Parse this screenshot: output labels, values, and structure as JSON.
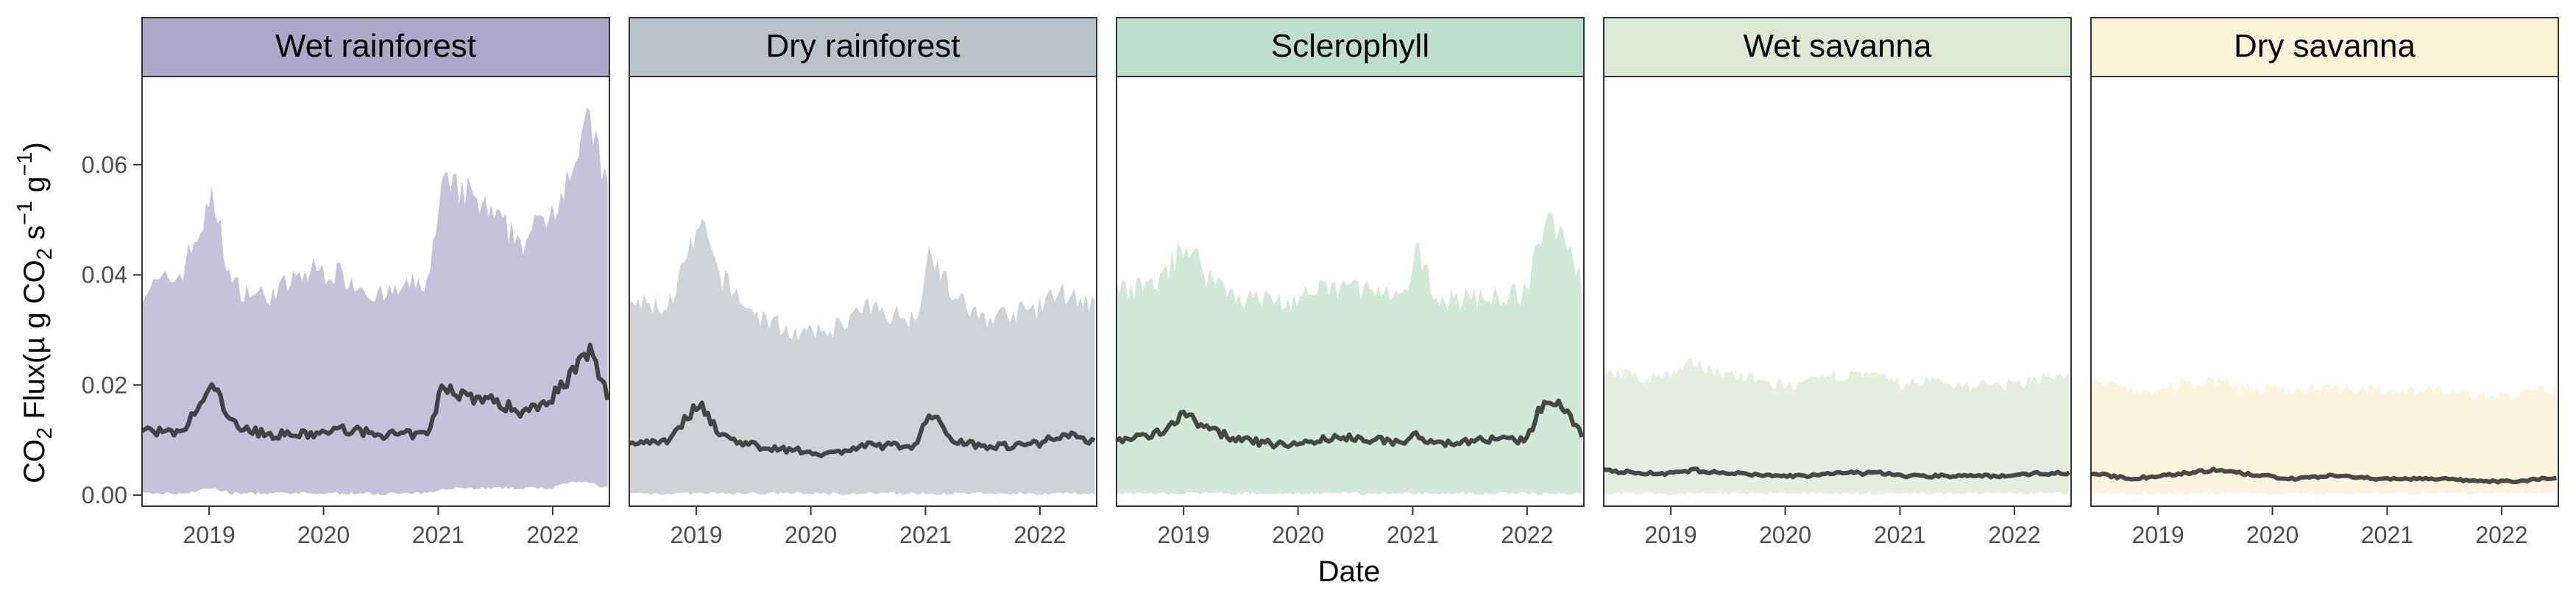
{
  "figure": {
    "y_axis_label": {
      "prefix": "CO",
      "prefix_sub": "2",
      "mid": " Flux(µ g CO",
      "mid_sub": "2",
      "s": " s",
      "s_sup": "−1",
      "g": " g",
      "g_sup": "−1",
      "suffix": ")"
    },
    "x_axis_label": "Date"
  },
  "chart_data": {
    "type": "area",
    "subtype": "small-multiples ribbon with median line",
    "xlabel": "Date",
    "ylabel": "CO2 Flux(µ g CO2 s-1 g-1)",
    "x_range": [
      "2018-06-01",
      "2022-07-01"
    ],
    "ylim": [
      -0.002,
      0.076
    ],
    "y_ticks": [
      0.0,
      0.02,
      0.04,
      0.06
    ],
    "y_tick_labels": [
      "0.00",
      "0.02",
      "0.04",
      "0.06"
    ],
    "x_ticks": [
      "2019-01-01",
      "2020-01-01",
      "2021-01-01",
      "2022-01-01"
    ],
    "x_tick_labels": [
      "2019",
      "2020",
      "2021",
      "2022"
    ],
    "line_color": "#2b2b2b",
    "grid": false,
    "shared_y_axis": true,
    "dates": [
      "2018-06-01",
      "2018-10-01",
      "2019-01-15",
      "2019-03-15",
      "2019-07-01",
      "2019-12-01",
      "2020-03-01",
      "2020-07-01",
      "2020-12-01",
      "2021-01-15",
      "2021-04-01",
      "2021-07-01",
      "2021-10-01",
      "2022-01-01",
      "2022-03-01",
      "2022-05-01",
      "2022-06-25"
    ],
    "panels": [
      {
        "title": "Wet rainforest",
        "strip_color": "#ada8c8",
        "band_color": "#c6c2d9",
        "median": [
          0.012,
          0.011,
          0.02,
          0.013,
          0.011,
          0.011,
          0.012,
          0.011,
          0.011,
          0.02,
          0.018,
          0.017,
          0.015,
          0.018,
          0.022,
          0.026,
          0.018
        ],
        "upper": [
          0.037,
          0.04,
          0.054,
          0.038,
          0.036,
          0.041,
          0.04,
          0.036,
          0.039,
          0.056,
          0.055,
          0.05,
          0.046,
          0.052,
          0.06,
          0.068,
          0.055
        ],
        "lower": [
          0.0,
          0.0,
          0.001,
          0.0,
          0.0,
          0.0,
          0.0,
          0.0,
          0.0,
          0.001,
          0.001,
          0.001,
          0.001,
          0.001,
          0.002,
          0.002,
          0.001
        ]
      },
      {
        "title": "Dry rainforest",
        "strip_color": "#b8c3c7",
        "band_color": "#cdd3d6",
        "median": [
          0.0095,
          0.01,
          0.017,
          0.011,
          0.009,
          0.008,
          0.0075,
          0.009,
          0.009,
          0.015,
          0.01,
          0.009,
          0.009,
          0.0095,
          0.011,
          0.0105,
          0.0098
        ],
        "upper": [
          0.035,
          0.034,
          0.049,
          0.04,
          0.033,
          0.029,
          0.03,
          0.034,
          0.032,
          0.045,
          0.036,
          0.032,
          0.033,
          0.034,
          0.037,
          0.036,
          0.034
        ],
        "lower": [
          0.0,
          0.0,
          0.0,
          0.0,
          0.0,
          0.0,
          0.0,
          0.0,
          0.0,
          0.0,
          0.0,
          0.0,
          0.0,
          0.0,
          0.0,
          0.0,
          0.0
        ]
      },
      {
        "title": "Sclerophyll",
        "strip_color": "#bedfcd",
        "band_color": "#d2e9da",
        "median": [
          0.01,
          0.011,
          0.015,
          0.012,
          0.01,
          0.009,
          0.01,
          0.0105,
          0.0095,
          0.011,
          0.009,
          0.01,
          0.01,
          0.01,
          0.018,
          0.016,
          0.011
        ],
        "upper": [
          0.037,
          0.038,
          0.046,
          0.04,
          0.036,
          0.035,
          0.037,
          0.038,
          0.035,
          0.044,
          0.035,
          0.036,
          0.036,
          0.037,
          0.05,
          0.048,
          0.038
        ],
        "lower": [
          0.0,
          0.0,
          0.0,
          0.0,
          0.0,
          0.0,
          0.0,
          0.0,
          0.0,
          0.0,
          0.0,
          0.0,
          0.0,
          0.0,
          0.0,
          0.0,
          0.0
        ]
      },
      {
        "title": "Wet savanna",
        "strip_color": "#dee9d3",
        "band_color": "#e6efdf",
        "median": [
          0.0045,
          0.004,
          0.004,
          0.0045,
          0.004,
          0.0035,
          0.0035,
          0.004,
          0.004,
          0.0035,
          0.0035,
          0.0035,
          0.0035,
          0.0035,
          0.004,
          0.004,
          0.004
        ],
        "upper": [
          0.023,
          0.021,
          0.022,
          0.024,
          0.022,
          0.02,
          0.02,
          0.022,
          0.021,
          0.02,
          0.021,
          0.02,
          0.02,
          0.02,
          0.021,
          0.022,
          0.021
        ],
        "lower": [
          0.0,
          0.0,
          0.0,
          0.0,
          0.0,
          0.0,
          0.0,
          0.0,
          0.0,
          0.0,
          0.0,
          0.0,
          0.0,
          0.0,
          0.0,
          0.0,
          0.0
        ]
      },
      {
        "title": "Dry savanna",
        "strip_color": "#fbf4d8",
        "band_color": "#fbf5e0",
        "median": [
          0.004,
          0.003,
          0.0035,
          0.004,
          0.0045,
          0.0035,
          0.003,
          0.0035,
          0.003,
          0.003,
          0.003,
          0.003,
          0.0025,
          0.0025,
          0.0025,
          0.003,
          0.003
        ],
        "upper": [
          0.021,
          0.019,
          0.019,
          0.02,
          0.021,
          0.019,
          0.019,
          0.02,
          0.019,
          0.019,
          0.019,
          0.019,
          0.018,
          0.018,
          0.018,
          0.019,
          0.019
        ],
        "lower": [
          0.0,
          0.0,
          0.0,
          0.0,
          0.0,
          0.0,
          0.0,
          0.0,
          0.0,
          0.0,
          0.0,
          0.0,
          0.0,
          0.0,
          0.0,
          0.0,
          0.0
        ]
      }
    ]
  }
}
